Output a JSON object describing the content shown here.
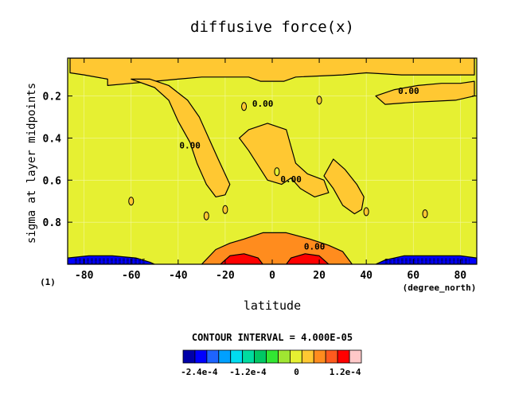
{
  "chart_data": {
    "type": "heatmap",
    "title": "diffusive force(x)",
    "xlabel": "latitude",
    "ylabel": "sigma at layer midpoints",
    "x_unit": "(degree_north)",
    "panel_label": "(1)",
    "xlim": [
      -87,
      87
    ],
    "ylim": [
      1.0,
      0.02
    ],
    "y_inverted": true,
    "x_ticks": [
      -80,
      -60,
      -40,
      -20,
      0,
      20,
      40,
      60,
      80
    ],
    "x_tick_labels": [
      "-80",
      "-60",
      "-40",
      "-20",
      "0",
      "20",
      "40",
      "60",
      "80"
    ],
    "y_ticks": [
      0.2,
      0.4,
      0.6,
      0.8
    ],
    "y_tick_labels": [
      "0.2",
      "0.4",
      "0.6",
      "0.8"
    ],
    "contour_interval_text": "CONTOUR INTERVAL = 4.000E-05",
    "contour_labels": [
      {
        "text": "0.00",
        "lat": 58,
        "sigma": 0.19
      },
      {
        "text": "0.00",
        "lat": -4,
        "sigma": 0.25
      },
      {
        "text": "0.00",
        "lat": -35,
        "sigma": 0.45
      },
      {
        "text": "0.00",
        "lat": 8,
        "sigma": 0.61
      },
      {
        "text": "0.00",
        "lat": 18,
        "sigma": 0.93
      }
    ],
    "colorbar": {
      "min": -0.00028,
      "max": 0.00016,
      "step": 4e-05,
      "colors": [
        "#0000a8",
        "#0000ff",
        "#1e64ff",
        "#00a0ff",
        "#00dcf0",
        "#00dca0",
        "#00c864",
        "#32e632",
        "#a0e632",
        "#e6f032",
        "#ffc832",
        "#ff8c1e",
        "#ff5a1e",
        "#ff0000",
        "#ffc8c8"
      ],
      "ticks": [
        -0.00024,
        -0.00012,
        0,
        0.00012
      ],
      "tick_labels": [
        "-2.4e-4",
        "-1.2e-4",
        "0",
        "1.2e-4"
      ]
    },
    "background_value_band": "0 to 4e-5",
    "regions": [
      {
        "name": "upper-band",
        "level": "0 to 4e-5",
        "color": "#ffc832"
      },
      {
        "name": "nh-upper",
        "level": "0 to 4e-5",
        "color": "#ffc832"
      },
      {
        "name": "sh-arm",
        "level": "0 to 4e-5",
        "color": "#ffc832"
      },
      {
        "name": "central",
        "level": "0 to 4e-5",
        "color": "#ffc832"
      },
      {
        "name": "nh-arm",
        "level": "0 to 4e-5",
        "color": "#ffc832"
      },
      {
        "name": "surface-dome",
        "level": "4e-5 to 8e-5",
        "color": "#ff8c1e"
      },
      {
        "name": "surface-max-sh",
        "level": "8e-5 to 1.6e-4",
        "color": "#ff0000"
      },
      {
        "name": "surface-max-nh",
        "level": "8e-5 to 1.6e-4",
        "color": "#ff0000"
      },
      {
        "name": "surface-min-sh",
        "level": "-2.8e-4 to -4e-5",
        "color": "#0000ff"
      },
      {
        "name": "surface-min-nh",
        "level": "-2.8e-4 to -4e-5",
        "color": "#0000ff"
      }
    ]
  }
}
